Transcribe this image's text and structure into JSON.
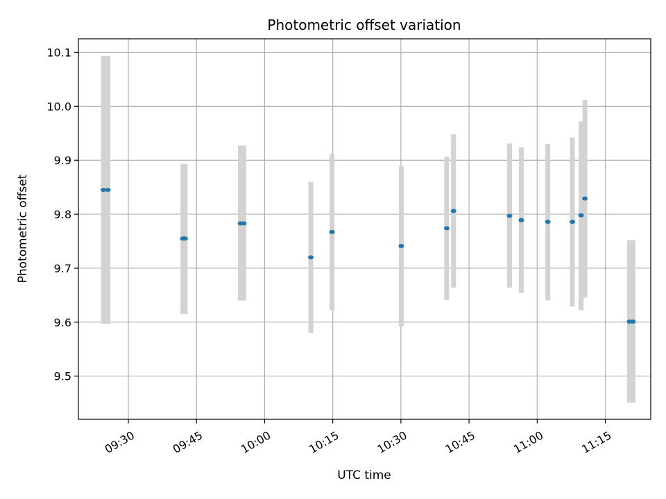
{
  "chart_data": {
    "type": "scatter",
    "title": "Photometric offset variation",
    "xlabel": "UTC time",
    "ylabel": "Photometric offset",
    "x_ticks": [
      "09:30",
      "09:45",
      "10:00",
      "10:15",
      "10:30",
      "10:45",
      "11:00",
      "11:15"
    ],
    "y_ticks": [
      "9.5",
      "9.6",
      "9.7",
      "9.8",
      "9.9",
      "10.0",
      "10.1"
    ],
    "xlim": [
      "09:19",
      "11:25"
    ],
    "ylim": [
      9.42,
      10.125
    ],
    "grid": true,
    "point_color": "#1f77b4",
    "errorbar_color": "#d3d3d3",
    "points": [
      {
        "x": "09:24:30",
        "y": 9.845,
        "ylow": 9.597,
        "yhigh": 10.093
      },
      {
        "x": "09:25:30",
        "y": 9.845,
        "ylow": 9.597,
        "yhigh": 10.093
      },
      {
        "x": "09:42:00",
        "y": 9.755,
        "ylow": 9.615,
        "yhigh": 9.893
      },
      {
        "x": "09:42:30",
        "y": 9.755,
        "ylow": 9.615,
        "yhigh": 9.893
      },
      {
        "x": "09:54:40",
        "y": 9.783,
        "ylow": 9.64,
        "yhigh": 9.927
      },
      {
        "x": "09:55:25",
        "y": 9.783,
        "ylow": 9.64,
        "yhigh": 9.927
      },
      {
        "x": "10:10:10",
        "y": 9.72,
        "ylow": 9.58,
        "yhigh": 9.86
      },
      {
        "x": "10:14:50",
        "y": 9.767,
        "ylow": 9.622,
        "yhigh": 9.912
      },
      {
        "x": "10:30:05",
        "y": 9.741,
        "ylow": 9.592,
        "yhigh": 9.889
      },
      {
        "x": "10:40:05",
        "y": 9.774,
        "ylow": 9.641,
        "yhigh": 9.907
      },
      {
        "x": "10:41:35",
        "y": 9.806,
        "ylow": 9.664,
        "yhigh": 9.948
      },
      {
        "x": "10:53:55",
        "y": 9.797,
        "ylow": 9.664,
        "yhigh": 9.931
      },
      {
        "x": "10:56:30",
        "y": 9.789,
        "ylow": 9.654,
        "yhigh": 9.924
      },
      {
        "x": "11:02:20",
        "y": 9.786,
        "ylow": 9.64,
        "yhigh": 9.93
      },
      {
        "x": "11:07:45",
        "y": 9.786,
        "ylow": 9.629,
        "yhigh": 9.942
      },
      {
        "x": "11:09:40",
        "y": 9.798,
        "ylow": 9.622,
        "yhigh": 9.972
      },
      {
        "x": "11:10:30",
        "y": 9.829,
        "ylow": 9.645,
        "yhigh": 10.012
      },
      {
        "x": "11:20:20",
        "y": 9.601,
        "ylow": 9.451,
        "yhigh": 9.752
      },
      {
        "x": "11:21:05",
        "y": 9.601,
        "ylow": 9.451,
        "yhigh": 9.752
      }
    ]
  }
}
